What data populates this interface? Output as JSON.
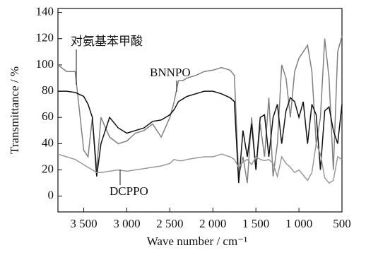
{
  "chart_data": {
    "type": "line",
    "x_label": "Wave number / cm⁻¹",
    "y_label": "Transmittance / %",
    "xlim": [
      3800,
      500
    ],
    "ylim": [
      -12,
      143
    ],
    "xticks": [
      {
        "value": 3500,
        "label": "3 500"
      },
      {
        "value": 3000,
        "label": "3 000"
      },
      {
        "value": 2500,
        "label": "2 500"
      },
      {
        "value": 2000,
        "label": "2 000"
      },
      {
        "value": 1500,
        "label": "1 500"
      },
      {
        "value": 1000,
        "label": "1 000"
      },
      500
    ],
    "yticks": [
      0,
      20,
      40,
      60,
      80,
      100,
      120,
      140
    ],
    "x": [
      3800,
      3700,
      3600,
      3500,
      3450,
      3400,
      3350,
      3300,
      3200,
      3100,
      3000,
      2900,
      2800,
      2700,
      2600,
      2500,
      2450,
      2400,
      2350,
      2300,
      2200,
      2100,
      2000,
      1900,
      1800,
      1750,
      1700,
      1650,
      1600,
      1550,
      1500,
      1450,
      1400,
      1350,
      1300,
      1250,
      1200,
      1150,
      1100,
      1050,
      1000,
      950,
      900,
      850,
      800,
      750,
      700,
      650,
      600,
      550,
      500
    ],
    "series": [
      {
        "name": "对氨基苯甲酸",
        "color": "#808080",
        "values": [
          100,
          95,
          95,
          35,
          30,
          60,
          20,
          60,
          45,
          40,
          42,
          48,
          50,
          55,
          45,
          60,
          72,
          88,
          88,
          90,
          92,
          95,
          96,
          98,
          96,
          92,
          15,
          30,
          10,
          60,
          20,
          55,
          30,
          75,
          15,
          40,
          100,
          90,
          60,
          95,
          105,
          110,
          115,
          95,
          40,
          60,
          120,
          90,
          20,
          110,
          122
        ]
      },
      {
        "name": "BNNPO",
        "color": "#111111",
        "values": [
          80,
          80,
          79,
          76,
          70,
          60,
          15,
          40,
          60,
          52,
          48,
          50,
          52,
          57,
          58,
          62,
          66,
          72,
          74,
          76,
          78,
          80,
          80,
          78,
          75,
          72,
          10,
          50,
          30,
          55,
          20,
          60,
          62,
          30,
          60,
          70,
          40,
          65,
          75,
          72,
          60,
          72,
          40,
          70,
          62,
          20,
          65,
          68,
          50,
          40,
          70
        ]
      },
      {
        "name": "DCPPO",
        "color": "#9a9a9a",
        "values": [
          32,
          30,
          28,
          24,
          22,
          20,
          18,
          18,
          19,
          20,
          19,
          20,
          21,
          22,
          23,
          25,
          28,
          27,
          27,
          28,
          29,
          30,
          30,
          32,
          30,
          28,
          22,
          26,
          28,
          24,
          30,
          28,
          27,
          28,
          25,
          15,
          30,
          25,
          22,
          18,
          20,
          16,
          12,
          18,
          40,
          32,
          14,
          10,
          12,
          30,
          28
        ]
      }
    ]
  }
}
